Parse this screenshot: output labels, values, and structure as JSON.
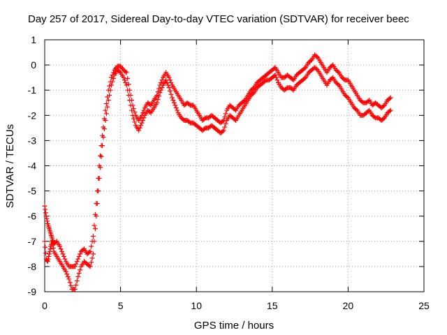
{
  "chart_data": {
    "type": "scatter",
    "title": "Day 257 of 2017, Sidereal Day-to-day VTEC variation (SDTVAR) for receiver beec",
    "xlabel": "GPS time / hours",
    "ylabel": "SDTVAR / TECUs",
    "xlim": [
      0,
      25
    ],
    "ylim": [
      -9,
      1
    ],
    "x_ticks": [
      0,
      5,
      10,
      15,
      20,
      25
    ],
    "y_ticks": [
      1,
      0,
      -1,
      -2,
      -3,
      -4,
      -5,
      -6,
      -7,
      -8,
      -9
    ],
    "x_tick_labels": [
      "0",
      "5",
      "10",
      "15",
      "20",
      "25"
    ],
    "y_tick_labels": [
      "1",
      "0",
      "-1",
      "-2",
      "-3",
      "-4",
      "-5",
      "-6",
      "-7",
      "-8",
      "-9"
    ],
    "grid": true,
    "marker": "+",
    "color": "#ff0000",
    "series": [
      {
        "x": [
          0.0,
          0.1,
          0.2,
          0.3,
          0.4,
          0.5,
          0.6,
          0.8,
          1.0,
          1.2,
          1.4,
          1.6,
          1.8,
          2.0,
          2.2,
          2.4,
          2.6,
          2.8,
          3.0,
          3.2,
          3.4,
          3.6,
          3.8,
          4.0,
          4.2,
          4.4,
          4.6,
          4.8,
          5.0,
          5.2,
          5.4,
          5.6,
          5.8,
          6.0,
          6.2,
          6.4,
          6.6,
          6.8,
          7.0,
          7.2,
          7.4,
          7.6,
          7.8,
          8.0,
          8.2,
          8.4,
          8.6,
          8.8,
          9.0,
          9.2,
          9.4,
          9.6,
          9.8,
          10.0,
          10.2,
          10.4,
          10.6,
          10.8,
          11.0,
          11.2,
          11.4,
          11.6,
          11.8,
          12.0,
          12.2,
          12.4,
          12.6,
          12.8,
          13.0,
          13.2,
          13.4,
          13.6,
          13.8,
          14.0,
          14.2,
          14.4,
          14.6,
          14.8,
          15.0,
          15.2,
          15.4,
          15.6,
          15.8,
          16.0,
          16.2,
          16.4,
          16.6,
          16.8,
          17.0,
          17.2,
          17.4,
          17.6,
          17.8,
          18.0,
          18.2,
          18.4,
          18.6,
          18.8,
          19.0,
          19.2,
          19.4,
          19.6,
          19.8,
          20.0,
          20.2,
          20.4,
          20.6,
          20.8,
          21.0,
          21.2,
          21.4,
          21.6,
          21.8,
          22.0,
          22.2,
          22.4,
          22.6,
          22.8
        ],
        "y": [
          -5.6,
          -6.0,
          -6.3,
          -6.5,
          -6.7,
          -6.9,
          -7.1,
          -7.0,
          -7.2,
          -7.5,
          -7.8,
          -8.0,
          -8.0,
          -8.0,
          -7.7,
          -7.4,
          -7.3,
          -7.5,
          -7.4,
          -6.8,
          -5.5,
          -4.0,
          -2.8,
          -1.8,
          -1.0,
          -0.5,
          -0.2,
          -0.05,
          -0.05,
          -0.2,
          -0.3,
          -1.0,
          -1.6,
          -2.0,
          -2.2,
          -2.0,
          -1.7,
          -1.5,
          -1.6,
          -1.4,
          -1.2,
          -0.8,
          -0.5,
          -0.3,
          -0.5,
          -0.8,
          -1.0,
          -1.2,
          -1.4,
          -1.6,
          -1.5,
          -1.6,
          -1.6,
          -1.8,
          -2.0,
          -2.2,
          -2.1,
          -2.1,
          -2.0,
          -2.1,
          -2.2,
          -2.3,
          -2.2,
          -1.8,
          -1.6,
          -1.7,
          -1.8,
          -1.6,
          -1.5,
          -1.4,
          -1.2,
          -1.0,
          -0.9,
          -0.7,
          -0.6,
          -0.5,
          -0.4,
          -0.3,
          -0.2,
          -0.1,
          -0.3,
          -0.5,
          -0.5,
          -0.4,
          -0.5,
          -0.6,
          -0.4,
          -0.3,
          -0.2,
          -0.1,
          0.1,
          0.2,
          0.4,
          0.3,
          0.1,
          -0.1,
          -0.3,
          -0.1,
          0.0,
          -0.2,
          -0.3,
          -0.5,
          -0.6,
          -0.6,
          -0.8,
          -1.0,
          -1.2,
          -1.4,
          -1.5,
          -1.5,
          -1.4,
          -1.6,
          -1.5,
          -1.6,
          -1.7,
          -1.6,
          -1.4,
          -1.3
        ]
      },
      {
        "x": [
          0.0,
          0.1,
          0.2,
          0.3,
          0.4,
          0.5,
          0.6,
          0.8,
          1.0,
          1.2,
          1.4,
          1.6,
          1.8,
          2.0,
          2.2,
          2.4,
          2.6,
          2.8,
          3.0,
          3.2,
          3.4,
          3.6,
          3.8,
          4.0,
          4.2,
          4.4,
          4.6,
          4.8,
          5.0,
          5.2,
          5.4,
          5.6,
          5.8,
          6.0,
          6.2,
          6.4,
          6.6,
          6.8,
          7.0,
          7.2,
          7.4,
          7.6,
          7.8,
          8.0,
          8.2,
          8.4,
          8.6,
          8.8,
          9.0,
          9.2,
          9.4,
          9.6,
          9.8,
          10.0,
          10.2,
          10.4,
          10.6,
          10.8,
          11.0,
          11.2,
          11.4,
          11.6,
          11.8,
          12.0,
          12.2,
          12.4,
          12.6,
          12.8,
          13.0,
          13.2,
          13.4,
          13.6,
          13.8,
          14.0,
          14.2,
          14.4,
          14.6,
          14.8,
          15.0,
          15.2,
          15.4,
          15.6,
          15.8,
          16.0,
          16.2,
          16.4,
          16.6,
          16.8,
          17.0,
          17.2,
          17.4,
          17.6,
          17.8,
          18.0,
          18.2,
          18.4,
          18.6,
          18.8,
          19.0,
          19.2,
          19.4,
          19.6,
          19.8,
          20.0,
          20.2,
          20.4,
          20.6,
          20.8,
          21.0,
          21.2,
          21.4,
          21.6,
          21.8,
          22.0,
          22.2,
          22.4,
          22.6,
          22.8
        ],
        "y": [
          -7.0,
          -7.7,
          -7.8,
          -7.5,
          -7.2,
          -7.0,
          -7.4,
          -7.6,
          -7.8,
          -8.0,
          -8.2,
          -8.5,
          -8.9,
          -8.9,
          -8.4,
          -8.0,
          -7.8,
          -7.9,
          -8.0,
          -7.5,
          -6.0,
          -4.5,
          -3.2,
          -2.2,
          -1.4,
          -0.8,
          -0.4,
          -0.2,
          -0.3,
          -0.5,
          -0.8,
          -1.4,
          -2.0,
          -2.4,
          -2.6,
          -2.3,
          -2.0,
          -1.8,
          -1.9,
          -1.7,
          -1.5,
          -1.1,
          -0.8,
          -0.6,
          -0.9,
          -1.3,
          -1.6,
          -1.9,
          -2.1,
          -2.2,
          -2.2,
          -2.3,
          -2.3,
          -2.4,
          -2.5,
          -2.6,
          -2.5,
          -2.5,
          -2.4,
          -2.5,
          -2.6,
          -2.7,
          -2.6,
          -2.2,
          -2.0,
          -2.1,
          -2.2,
          -2.0,
          -1.8,
          -1.6,
          -1.4,
          -1.2,
          -1.1,
          -0.9,
          -0.8,
          -0.7,
          -0.6,
          -0.6,
          -0.5,
          -0.4,
          -0.7,
          -0.9,
          -1.0,
          -0.9,
          -0.9,
          -1.0,
          -0.8,
          -0.7,
          -0.6,
          -0.5,
          -0.3,
          -0.2,
          -0.1,
          -0.2,
          -0.4,
          -0.6,
          -0.8,
          -0.6,
          -0.5,
          -0.7,
          -0.8,
          -1.0,
          -1.2,
          -1.3,
          -1.5,
          -1.7,
          -1.8,
          -2.0,
          -2.0,
          -1.9,
          -1.8,
          -2.0,
          -2.1,
          -2.1,
          -2.2,
          -2.1,
          -1.9,
          -1.8
        ]
      }
    ]
  }
}
